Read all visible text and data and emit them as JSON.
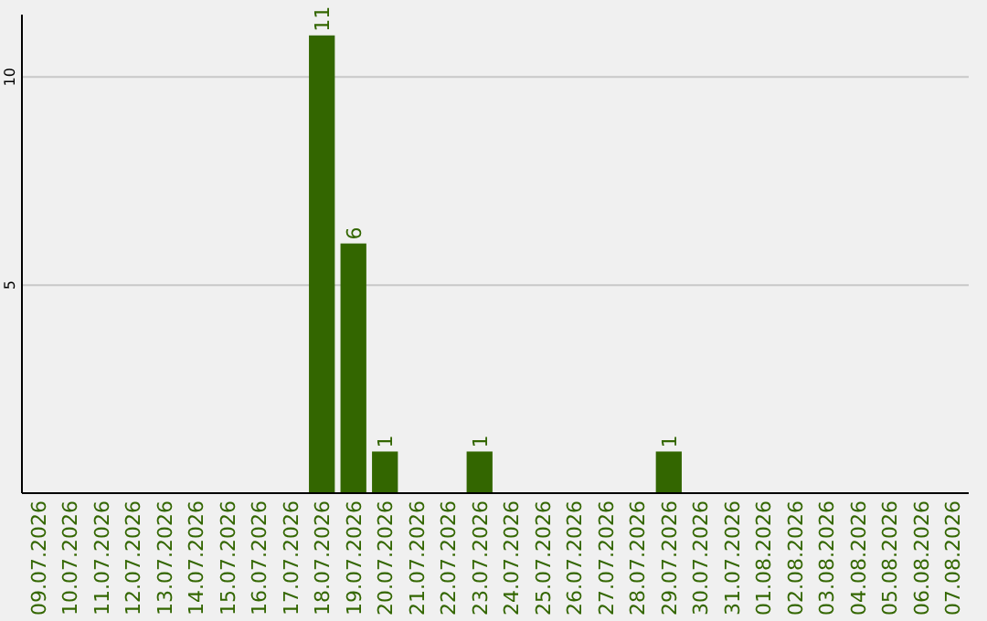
{
  "chart_data": {
    "type": "bar",
    "categories": [
      "09.07.2026",
      "10.07.2026",
      "11.07.2026",
      "12.07.2026",
      "13.07.2026",
      "14.07.2026",
      "15.07.2026",
      "16.07.2026",
      "17.07.2026",
      "18.07.2026",
      "19.07.2026",
      "20.07.2026",
      "21.07.2026",
      "22.07.2026",
      "23.07.2026",
      "24.07.2026",
      "25.07.2026",
      "26.07.2026",
      "27.07.2026",
      "28.07.2026",
      "29.07.2026",
      "30.07.2026",
      "31.07.2026",
      "01.08.2026",
      "02.08.2026",
      "03.08.2026",
      "04.08.2026",
      "05.08.2026",
      "06.08.2026",
      "07.08.2026"
    ],
    "values": [
      0,
      0,
      0,
      0,
      0,
      0,
      0,
      0,
      0,
      11,
      6,
      1,
      0,
      0,
      1,
      0,
      0,
      0,
      0,
      0,
      1,
      0,
      0,
      0,
      0,
      0,
      0,
      0,
      0,
      0
    ],
    "value_labels": [
      null,
      null,
      null,
      null,
      null,
      null,
      null,
      null,
      null,
      "11",
      "6",
      "1",
      null,
      null,
      "1",
      null,
      null,
      null,
      null,
      null,
      "1",
      null,
      null,
      null,
      null,
      null,
      null,
      null,
      null,
      null
    ],
    "color": "#336600",
    "ylim": [
      0,
      11.5
    ],
    "yticks": [
      5,
      10
    ],
    "grid": "y"
  }
}
